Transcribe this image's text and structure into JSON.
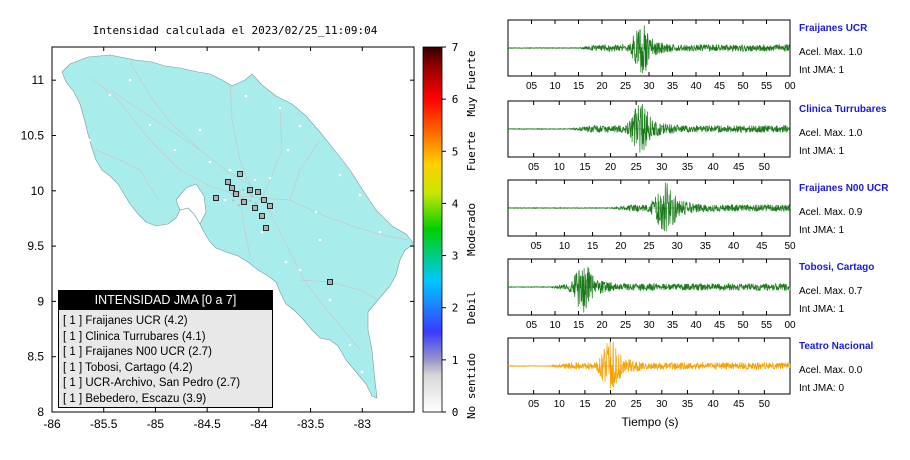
{
  "map": {
    "title": "Intensidad calculada el 2023/02/25_11:09:04",
    "x_ticks": [
      "-86",
      "-85.5",
      "-85",
      "-84.5",
      "-84",
      "-83.5",
      "-83"
    ],
    "y_ticks": [
      "11",
      "10.5",
      "10",
      "9.5",
      "9",
      "8.5",
      "8"
    ],
    "xlim": [
      -86,
      -82.5
    ],
    "ylim": [
      8,
      11.3
    ]
  },
  "colorbar": {
    "ticks": [
      "0",
      "1",
      "2",
      "3",
      "4",
      "5",
      "6",
      "7"
    ],
    "labels": [
      "No sentido",
      "Debil",
      "Moderado",
      "Fuerte",
      "Muy Fuerte"
    ]
  },
  "legend": {
    "title": "INTENSIDAD JMA [0 a 7]",
    "items": [
      "[ 1 ]  Fraijanes UCR (4.2)",
      "[ 1 ]  Clinica Turrubares (4.1)",
      "[ 1 ]  Fraijanes N00 UCR (2.7)",
      "[ 1 ]  Tobosi, Cartago (4.2)",
      "[ 1 ]  UCR-Archivo, San Pedro (2.7)",
      "[ 1 ]  Bebedero, Escazu (3.9)"
    ]
  },
  "stations": [
    {
      "name": "Fraijanes UCR",
      "accel": "Acel. Max. 1.0",
      "jma": "Int JMA: 1",
      "color": "#1a7a1a",
      "onset": 15,
      "peak": 28.5,
      "xmax": 60,
      "ticks": [
        "05",
        "10",
        "15",
        "20",
        "25",
        "30",
        "35",
        "40",
        "45",
        "50",
        "55",
        "00"
      ]
    },
    {
      "name": "Clinica Turrubares",
      "accel": "Acel. Max. 1.0",
      "jma": "Int JMA: 1",
      "color": "#1a7a1a",
      "onset": 12,
      "peak": 26,
      "xmax": 55,
      "ticks": [
        "05",
        "10",
        "15",
        "20",
        "25",
        "30",
        "35",
        "40",
        "45",
        "50"
      ]
    },
    {
      "name": "Fraijanes N00 UCR",
      "accel": "Acel. Max. 0.9",
      "jma": "Int JMA: 1",
      "color": "#1a7a1a",
      "onset": 18,
      "peak": 28,
      "xmax": 50,
      "ticks": [
        "05",
        "10",
        "15",
        "20",
        "25",
        "30",
        "35",
        "40",
        "45",
        "50"
      ]
    },
    {
      "name": "Tobosi, Cartago",
      "accel": "Acel. Max. 0.7",
      "jma": "Int JMA: 1",
      "color": "#1a7a1a",
      "onset": 9,
      "peak": 16,
      "xmax": 60,
      "ticks": [
        "05",
        "10",
        "15",
        "20",
        "25",
        "30",
        "35",
        "40",
        "45",
        "50",
        "55",
        "00"
      ]
    },
    {
      "name": "Teatro Nacional",
      "accel": "Acel. Max. 0.0",
      "jma": "Int JMA: 0",
      "color": "#f5a000",
      "onset": 8,
      "peak": 20,
      "xmax": 55,
      "ticks": [
        "05",
        "10",
        "15",
        "20",
        "25",
        "30",
        "35",
        "40",
        "45",
        "50"
      ]
    }
  ],
  "x_axis_title": "Tiempo (s)",
  "colors": {
    "land": "#a9ecec",
    "wave": "#1a7a1a",
    "wave_teatro": "#f5a000",
    "station_name": "#1a1ad8"
  }
}
